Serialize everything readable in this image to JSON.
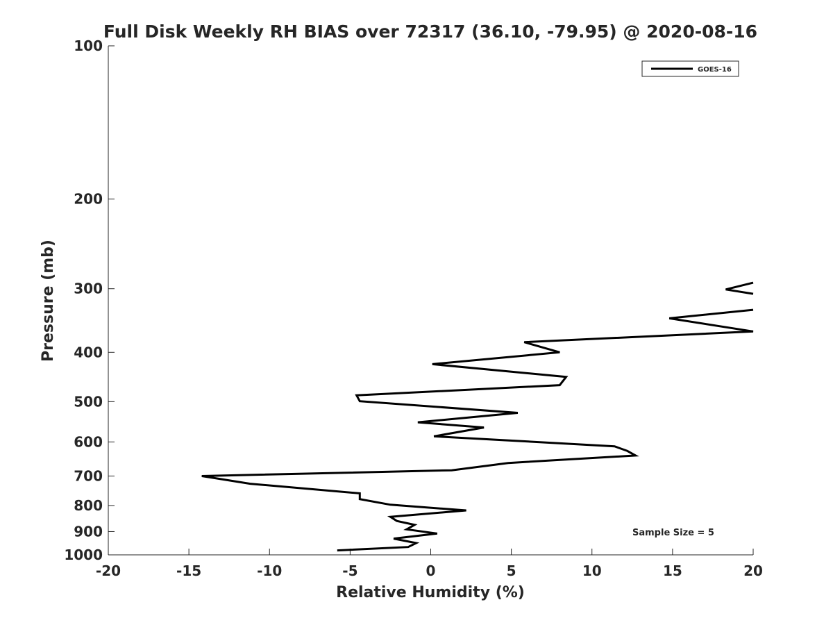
{
  "chart_data": {
    "type": "line",
    "title": "Full Disk Weekly RH BIAS over 72317 (36.10, -79.95) @ 2020-08-16",
    "xlabel": "Relative Humidity (%)",
    "ylabel": "Pressure (mb)",
    "xlim": [
      -20,
      20
    ],
    "ylim": [
      1000,
      100
    ],
    "y_scale": "log",
    "y_reversed": true,
    "grid": false,
    "legend_position": "top-right",
    "annotation": "Sample Size = 5",
    "x_ticks": [
      -20,
      -15,
      -10,
      -5,
      0,
      5,
      10,
      15,
      20
    ],
    "x_tick_labels": [
      "-20",
      "-15",
      "-10",
      "-5",
      "0",
      "5",
      "10",
      "15",
      "20"
    ],
    "y_ticks": [
      100,
      200,
      300,
      400,
      500,
      600,
      700,
      800,
      900,
      1000
    ],
    "y_tick_labels": [
      "100",
      "200",
      "300",
      "400",
      "500",
      "600",
      "700",
      "800",
      "900",
      "1000"
    ],
    "series": [
      {
        "name": "GOES-16",
        "color": "#000000",
        "points": [
          [
            -5.8,
            980
          ],
          [
            -1.4,
            965
          ],
          [
            -0.9,
            948
          ],
          [
            -2.3,
            929
          ],
          [
            0.4,
            908
          ],
          [
            -1.5,
            891
          ],
          [
            -1.0,
            873
          ],
          [
            -2.1,
            858
          ],
          [
            -2.5,
            842
          ],
          [
            2.2,
            818
          ],
          [
            -2.5,
            797
          ],
          [
            -4.4,
            777
          ],
          [
            -4.4,
            757
          ],
          [
            -11.2,
            725
          ],
          [
            -14.2,
            700
          ],
          [
            1.3,
            682
          ],
          [
            4.8,
            660
          ],
          [
            12.7,
            638
          ],
          [
            12.2,
            625
          ],
          [
            11.4,
            612
          ],
          [
            0.2,
            585
          ],
          [
            3.3,
            562
          ],
          [
            -0.8,
            549
          ],
          [
            5.4,
            526
          ],
          [
            -4.4,
            499
          ],
          [
            -4.6,
            486
          ],
          [
            8.0,
            464
          ],
          [
            8.4,
            447
          ],
          [
            0.1,
            422
          ],
          [
            8.0,
            400
          ],
          [
            5.8,
            382
          ],
          [
            20.0,
            364
          ],
          [
            14.8,
            343
          ],
          [
            20.0,
            330
          ]
        ],
        "points_segment_2": [
          [
            20.0,
            307
          ],
          [
            18.3,
            301
          ],
          [
            20.0,
            292
          ]
        ]
      }
    ]
  }
}
